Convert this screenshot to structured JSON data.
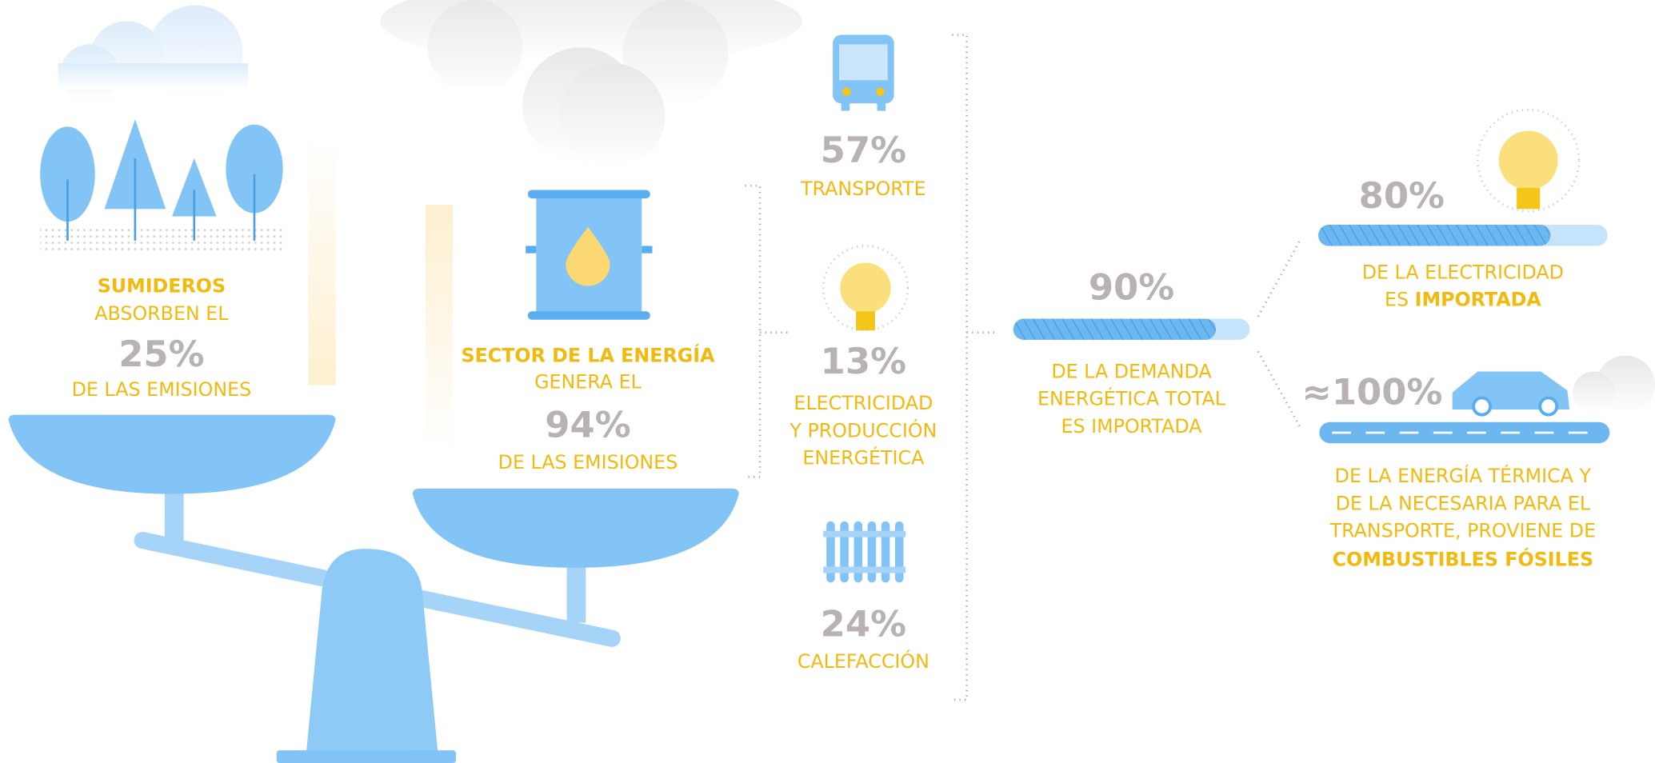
{
  "sinks": {
    "lines": [
      "SUMIDEROS",
      "ABSORBEN EL"
    ],
    "percent": "25%",
    "caption": "DE LAS EMISIONES"
  },
  "energy_sector": {
    "lines": [
      "SECTOR DE LA ENERGÍA",
      "GENERA EL"
    ],
    "percent": "94%",
    "caption": "DE LAS EMISIONES"
  },
  "breakdown": [
    {
      "percent": "57%",
      "label": [
        "TRANSPORTE"
      ]
    },
    {
      "percent": "13%",
      "label": [
        "ELECTRICIDAD",
        "Y PRODUCCIÓN",
        "ENERGÉTICA"
      ]
    },
    {
      "percent": "24%",
      "label": [
        "CALEFACCIÓN"
      ]
    }
  ],
  "imported_demand": {
    "percent": "90%",
    "label": [
      "DE LA DEMANDA",
      "ENERGÉTICA TOTAL",
      "ES IMPORTADA"
    ]
  },
  "electricity": {
    "percent": "80%",
    "line1": "DE LA ELECTRICIDAD",
    "line2_prefix": "ES",
    "line2_bold": "IMPORTADA"
  },
  "fossil": {
    "percent": "≈100%",
    "label": [
      "DE LA ENERGÍA TÉRMICA Y",
      "DE LA NECESARIA PARA EL",
      "TRANSPORTE, PROVIENE DE"
    ],
    "label_bold": "COMBUSTIBLES FÓSILES"
  }
}
